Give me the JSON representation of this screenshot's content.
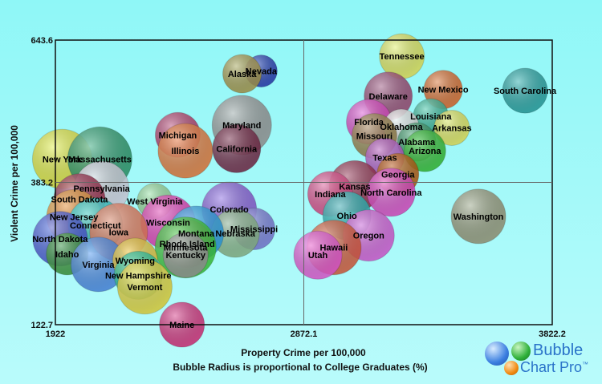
{
  "chart_data": {
    "type": "bubble",
    "xlabel": "Property Crime per 100,000",
    "subtitle": "Bubble Radius is proportional to College Graduates (%)",
    "ylabel": "Violent Crime per 100,000",
    "xlim": [
      1922,
      3822.2
    ],
    "ylim": [
      122.7,
      643.6
    ],
    "x_ticks": [
      "1922",
      "2872.1",
      "3822.2"
    ],
    "y_ticks": [
      "122.7",
      "383.2",
      "643.6"
    ],
    "grid": "crosshair at midpoints",
    "points": [
      {
        "label": "Tennessee",
        "x": 3247,
        "y": 614,
        "size": 28,
        "color": "#f0f060"
      },
      {
        "label": "Nevada",
        "x": 2709,
        "y": 587,
        "size": 20,
        "color": "#2a3db8"
      },
      {
        "label": "Alaska",
        "x": 2636,
        "y": 582,
        "size": 24,
        "color": "#b0a050"
      },
      {
        "label": "New Mexico",
        "x": 3405,
        "y": 553,
        "size": 24,
        "color": "#e86d2d"
      },
      {
        "label": "South Carolina",
        "x": 3718,
        "y": 551,
        "size": 28,
        "color": "#2aa8a8"
      },
      {
        "label": "Delaware",
        "x": 3195,
        "y": 541,
        "size": 30,
        "color": "#a44b78"
      },
      {
        "label": "Louisiana",
        "x": 3358,
        "y": 504,
        "size": 22,
        "color": "#40c0a0"
      },
      {
        "label": "Florida",
        "x": 3121,
        "y": 494,
        "size": 28,
        "color": "#e84fcf"
      },
      {
        "label": "Maryland",
        "x": 2635,
        "y": 488,
        "size": 37,
        "color": "#a0a0a0"
      },
      {
        "label": "Oklahoma",
        "x": 3245,
        "y": 485,
        "size": 22,
        "color": "#f0f0f0"
      },
      {
        "label": "Arkansas",
        "x": 3438,
        "y": 483,
        "size": 22,
        "color": "#f0f060"
      },
      {
        "label": "Michigan",
        "x": 2390,
        "y": 470,
        "size": 28,
        "color": "#c04070"
      },
      {
        "label": "Missouri",
        "x": 3142,
        "y": 468,
        "size": 28,
        "color": "#a08a50"
      },
      {
        "label": "Alabama",
        "x": 3304,
        "y": 457,
        "size": 24,
        "color": "#40a070"
      },
      {
        "label": "Arizona",
        "x": 3335,
        "y": 441,
        "size": 26,
        "color": "#38c838"
      },
      {
        "label": "Illinois",
        "x": 2419,
        "y": 441,
        "size": 34,
        "color": "#f08040"
      },
      {
        "label": "California",
        "x": 2615,
        "y": 445,
        "size": 30,
        "color": "#7a2a4a"
      },
      {
        "label": "New York",
        "x": 1948,
        "y": 426,
        "size": 37,
        "color": "#f0f040"
      },
      {
        "label": "Massachusetts",
        "x": 2092,
        "y": 426,
        "size": 40,
        "color": "#30a070"
      },
      {
        "label": "Texas",
        "x": 3182,
        "y": 429,
        "size": 24,
        "color": "#c060d0"
      },
      {
        "label": "Georgia",
        "x": 3232,
        "y": 398,
        "size": 26,
        "color": "#c06010"
      },
      {
        "label": "Pennsylvania",
        "x": 2099,
        "y": 372,
        "size": 34,
        "color": "#e0e0f0"
      },
      {
        "label": "Kansas",
        "x": 3067,
        "y": 376,
        "size": 32,
        "color": "#a03050"
      },
      {
        "label": "North Carolina",
        "x": 3206,
        "y": 365,
        "size": 30,
        "color": "#e84fcf"
      },
      {
        "label": "Indiana",
        "x": 2973,
        "y": 362,
        "size": 28,
        "color": "#e85090"
      },
      {
        "label": "South Dakota",
        "x": 2014,
        "y": 352,
        "size": 32,
        "color": "#a03050"
      },
      {
        "label": "West Virginia",
        "x": 2302,
        "y": 349,
        "size": 22,
        "color": "#a0e0a0"
      },
      {
        "label": "Colorado",
        "x": 2587,
        "y": 334,
        "size": 34,
        "color": "#9060e0"
      },
      {
        "label": "Washington",
        "x": 3540,
        "y": 321,
        "size": 34,
        "color": "#a0a080"
      },
      {
        "label": "Ohio",
        "x": 3037,
        "y": 322,
        "size": 30,
        "color": "#30c0c0"
      },
      {
        "label": "New Jersey",
        "x": 1993,
        "y": 320,
        "size": 34,
        "color": "#f0a040"
      },
      {
        "label": "Wisconsin",
        "x": 2353,
        "y": 310,
        "size": 34,
        "color": "#f040c0"
      },
      {
        "label": "Connecticut",
        "x": 2075,
        "y": 305,
        "size": 34,
        "color": "#30d8d8"
      },
      {
        "label": "Mississippi",
        "x": 2682,
        "y": 298,
        "size": 26,
        "color": "#8080e0"
      },
      {
        "label": "Iowa",
        "x": 2164,
        "y": 292,
        "size": 36,
        "color": "#f08060"
      },
      {
        "label": "Nebraska",
        "x": 2610,
        "y": 290,
        "size": 30,
        "color": "#90c090"
      },
      {
        "label": "Montana",
        "x": 2461,
        "y": 290,
        "size": 34,
        "color": "#30a8f0"
      },
      {
        "label": "Oregon",
        "x": 3120,
        "y": 286,
        "size": 32,
        "color": "#e060e0"
      },
      {
        "label": "North Dakota",
        "x": 1940,
        "y": 280,
        "size": 34,
        "color": "#5060e0"
      },
      {
        "label": "Rhode Island",
        "x": 2426,
        "y": 271,
        "size": 30,
        "color": "#e060a0"
      },
      {
        "label": "Minnesota",
        "x": 2420,
        "y": 264,
        "size": 38,
        "color": "#40d040"
      },
      {
        "label": "Hawaii",
        "x": 2987,
        "y": 264,
        "size": 34,
        "color": "#e06040"
      },
      {
        "label": "Kentucky",
        "x": 2420,
        "y": 250,
        "size": 28,
        "color": "#a0a0a0"
      },
      {
        "label": "Idaho",
        "x": 1967,
        "y": 252,
        "size": 26,
        "color": "#40a040"
      },
      {
        "label": "Utah",
        "x": 2926,
        "y": 250,
        "size": 30,
        "color": "#f060e0"
      },
      {
        "label": "Virginia",
        "x": 2086,
        "y": 233,
        "size": 34,
        "color": "#5090f0"
      },
      {
        "label": "Wyoming",
        "x": 2227,
        "y": 240,
        "size": 28,
        "color": "#f0d040"
      },
      {
        "label": "New Hampshire",
        "x": 2239,
        "y": 213,
        "size": 30,
        "color": "#30d0a0"
      },
      {
        "label": "Vermont",
        "x": 2264,
        "y": 192,
        "size": 34,
        "color": "#f0e040"
      },
      {
        "label": "Maine",
        "x": 2406,
        "y": 122.7,
        "size": 28,
        "color": "#e03080"
      }
    ],
    "legend": "none",
    "branding": "Bubble Chart Pro"
  },
  "labels": {
    "x_axis": "Property Crime per 100,000",
    "subtitle": "Bubble Radius is proportional to College Graduates (%)",
    "y_axis": "Violent Crime per 100,000",
    "logo_line1": "Bubble",
    "logo_line2": "Chart Pro",
    "logo_mark": "™"
  }
}
